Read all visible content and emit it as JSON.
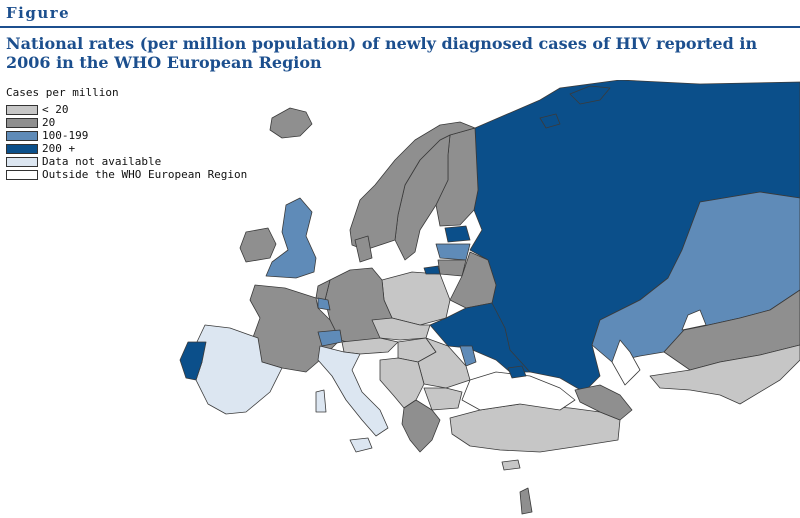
{
  "header": {
    "figure_label": "Figure",
    "title": "National rates (per million population) of newly diagnosed cases of HIV reported in 2006 in the WHO European Region"
  },
  "colors": {
    "lt20": "#c6c6c6",
    "eq20": "#8f8f8f",
    "r100_199": "#5f8bb8",
    "gte200": "#0b4f8a",
    "na": "#dce6f1",
    "outside": "#ffffff",
    "border": "#3a3a3a",
    "accent": "#1c4f8e"
  },
  "legend": {
    "title": "Cases per million",
    "items": [
      {
        "label": "< 20",
        "color": "#c6c6c6"
      },
      {
        "label": "20",
        "color": "#8f8f8f"
      },
      {
        "label": "100-199",
        "color": "#5f8bb8"
      },
      {
        "label": "200 +",
        "color": "#0b4f8a"
      },
      {
        "label": "Data not available",
        "color": "#dce6f1"
      },
      {
        "label": "Outside the WHO European Region",
        "color": "#ffffff"
      }
    ]
  }
}
